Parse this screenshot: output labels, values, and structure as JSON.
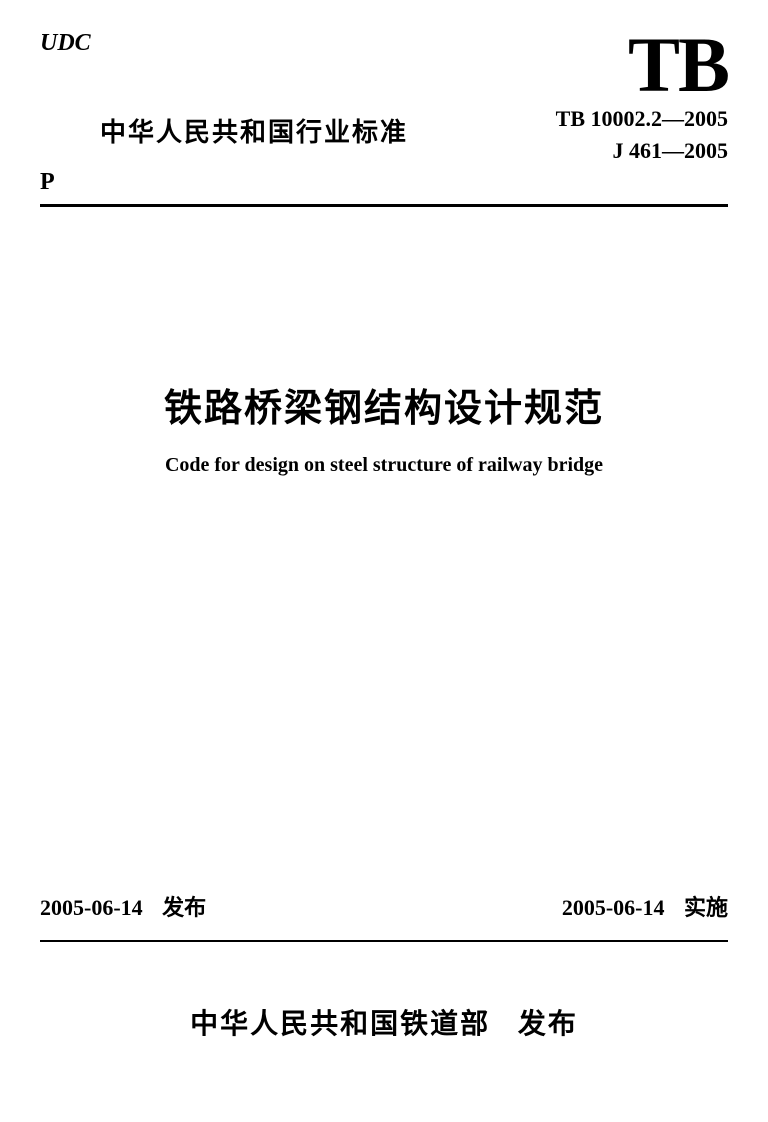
{
  "header": {
    "udc": "UDC",
    "subtitle_cn": "中华人民共和国行业标准",
    "p_label": "P",
    "tb_logo": "TB",
    "code_line1": "TB 10002.2—2005",
    "code_line2": "J 461—2005"
  },
  "title": {
    "cn": "铁路桥梁钢结构设计规范",
    "en": "Code for design on steel structure of railway bridge"
  },
  "dates": {
    "issue_date": "2005-06-14",
    "issue_label": "发布",
    "impl_date": "2005-06-14",
    "impl_label": "实施"
  },
  "publisher": {
    "org": "中华人民共和国铁道部",
    "action": "发布"
  },
  "colors": {
    "text": "#000000",
    "background": "#ffffff"
  }
}
